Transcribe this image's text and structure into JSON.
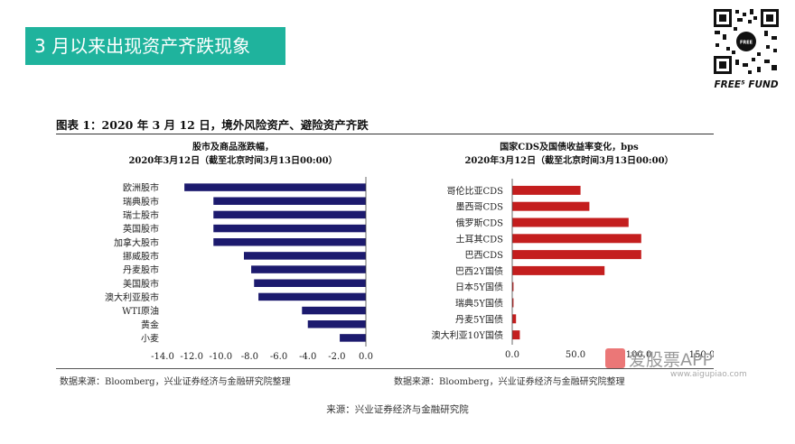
{
  "slide_title": "3 月以来出现资产齐跌现象",
  "brand": "FREE⁵ FUND",
  "figure_title": "图表 1：2020 年 3 月 12 日，境外风险资产、避险资产齐跌",
  "source_left": "数据来源：Bloomberg，兴业证券经济与金融研究院整理",
  "source_right": "数据来源：Bloomberg，兴业证券经济与金融研究院整理",
  "footer": "来源：兴业证券经济与金融研究院",
  "watermark": "爱股票APP",
  "watermark_sub": "www.aigupiao.com",
  "chart_data": [
    {
      "type": "bar",
      "orientation": "horizontal",
      "title": "股市及商品涨跌幅，",
      "subtitle": "2020年3月12日（截至北京时间3月13日00:00）",
      "categories": [
        "欧洲股市",
        "瑞典股市",
        "瑞士股市",
        "英国股市",
        "加拿大股市",
        "挪威股市",
        "丹麦股市",
        "美国股市",
        "澳大利亚股市",
        "WTI原油",
        "黄金",
        "小麦"
      ],
      "values": [
        -12.5,
        -10.5,
        -10.5,
        -10.5,
        -10.5,
        -8.4,
        -7.9,
        -7.7,
        -7.4,
        -4.4,
        -4.0,
        -1.8
      ],
      "xlim": [
        -14.0,
        0.0
      ],
      "xticks": [
        "-14.0",
        "-12.0",
        "-10.0",
        "-8.0",
        "-6.0",
        "-4.0",
        "-2.0",
        "0.0"
      ],
      "color": "#1c1a6e"
    },
    {
      "type": "bar",
      "orientation": "horizontal",
      "title": "国家CDS及国债收益率变化，bps",
      "subtitle": "2020年3月12日（截至北京时间3月13日00:00）",
      "categories": [
        "哥伦比亚CDS",
        "墨西哥CDS",
        "俄罗斯CDS",
        "土耳其CDS",
        "巴西CDS",
        "巴西2Y国债",
        "日本5Y国债",
        "瑞典5Y国债",
        "丹麦5Y国债",
        "澳大利亚10Y国债"
      ],
      "values": [
        54,
        61,
        92,
        102,
        102,
        73,
        1,
        1,
        3,
        6
      ],
      "xlim": [
        0,
        150
      ],
      "xticks": [
        "0.0",
        "50.0",
        "100.0",
        "150.0"
      ],
      "color": "#c41e1e"
    }
  ]
}
